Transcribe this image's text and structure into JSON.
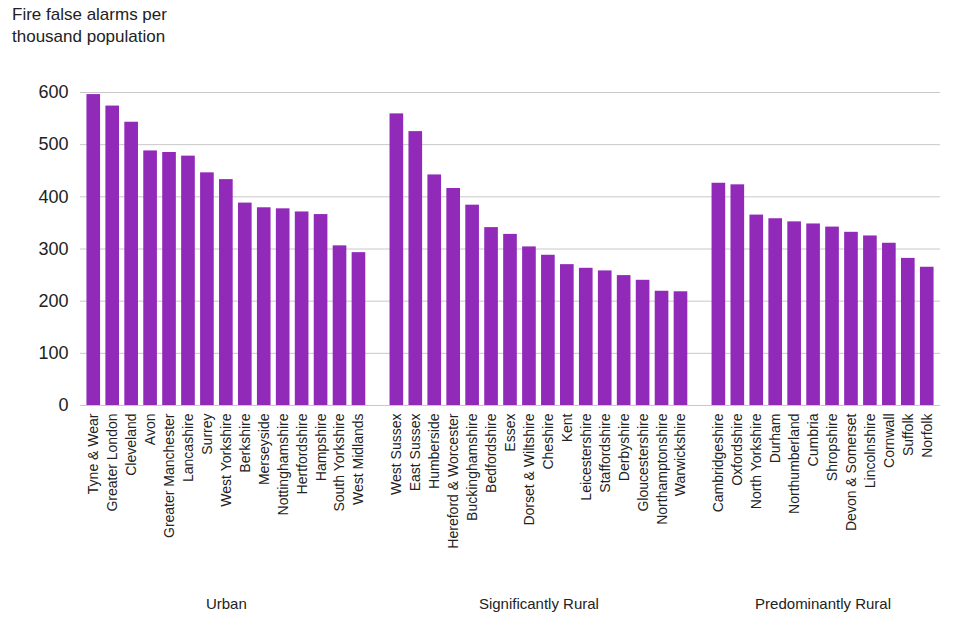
{
  "chart_data": {
    "type": "bar",
    "title": "Fire false alarms per thousand population",
    "color": "#9129b9",
    "ylim": [
      0,
      600
    ],
    "yticks": [
      0,
      100,
      200,
      300,
      400,
      500,
      600
    ],
    "grid": true,
    "groups": [
      {
        "name": "Urban",
        "categories": [
          "Tyne & Wear",
          "Greater London",
          "Cleveland",
          "Avon",
          "Greater Manchester",
          "Lancashire",
          "Surrey",
          "West Yorkshire",
          "Berkshire",
          "Merseyside",
          "Nottinghamshire",
          "Hertfordshire",
          "Hampshire",
          "South Yorkshire",
          "West Midlands"
        ],
        "values": [
          596,
          574,
          543,
          488,
          485,
          478,
          446,
          433,
          388,
          379,
          377,
          371,
          366,
          306,
          293
        ]
      },
      {
        "name": "Significantly Rural",
        "categories": [
          "West Sussex",
          "East Sussex",
          "Humberside",
          "Hereford & Worcester",
          "Buckinghamshire",
          "Bedfordshire",
          "Essex",
          "Dorset & Wiltshire",
          "Cheshire",
          "Kent",
          "Leicestershire",
          "Staffordshire",
          "Derbyshire",
          "Gloucestershire",
          "Northamptonshire",
          "Warwickshire"
        ],
        "values": [
          559,
          525,
          442,
          416,
          384,
          341,
          328,
          304,
          288,
          270,
          263,
          258,
          249,
          240,
          219,
          218
        ]
      },
      {
        "name": "Predominantly Rural",
        "categories": [
          "Cambridgeshire",
          "Oxfordshire",
          "North Yorkshire",
          "Durham",
          "Northumberland",
          "Cumbria",
          "Shropshire",
          "Devon & Somerset",
          "Lincolnshire",
          "Cornwall",
          "Suffolk",
          "Norfolk"
        ],
        "values": [
          426,
          423,
          365,
          358,
          352,
          348,
          342,
          332,
          325,
          311,
          282,
          265
        ]
      }
    ]
  }
}
